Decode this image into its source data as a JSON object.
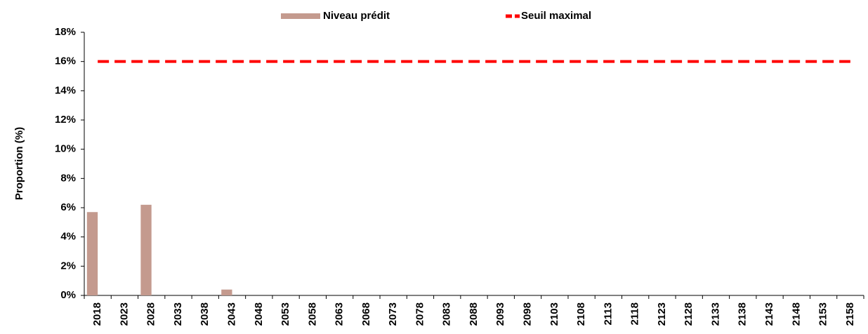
{
  "chart_data": {
    "type": "bar",
    "y_label": "Proportion (%)",
    "categories": [
      "2018",
      "2023",
      "2028",
      "2033",
      "2038",
      "2043",
      "2048",
      "2053",
      "2058",
      "2063",
      "2068",
      "2073",
      "2078",
      "2083",
      "2088",
      "2093",
      "2098",
      "2103",
      "2108",
      "2113",
      "2118",
      "2123",
      "2128",
      "2133",
      "2138",
      "2143",
      "2148",
      "2153",
      "2158"
    ],
    "series": [
      {
        "name": "Niveau prédit",
        "type": "bar",
        "color": "#c49a8e",
        "values": [
          5.7,
          0,
          6.2,
          0,
          0,
          0.4,
          0,
          0,
          0,
          0,
          0,
          0,
          0,
          0,
          0,
          0,
          0,
          0,
          0,
          0,
          0,
          0,
          0,
          0,
          0,
          0,
          0,
          0,
          0
        ]
      },
      {
        "name": "Seuil maximal",
        "type": "line",
        "color": "#ff0000",
        "dashed": true,
        "values": [
          16,
          16,
          16,
          16,
          16,
          16,
          16,
          16,
          16,
          16,
          16,
          16,
          16,
          16,
          16,
          16,
          16,
          16,
          16,
          16,
          16,
          16,
          16,
          16,
          16,
          16,
          16,
          16,
          16
        ]
      }
    ],
    "ylim": [
      0,
      18
    ],
    "yticks": [
      {
        "value": 0,
        "label": "0%"
      },
      {
        "value": 2,
        "label": "2%"
      },
      {
        "value": 4,
        "label": "4%"
      },
      {
        "value": 6,
        "label": "6%"
      },
      {
        "value": 8,
        "label": "8%"
      },
      {
        "value": 10,
        "label": "10%"
      },
      {
        "value": 12,
        "label": "12%"
      },
      {
        "value": 14,
        "label": "14%"
      },
      {
        "value": 16,
        "label": "16%"
      },
      {
        "value": 18,
        "label": "18%"
      }
    ],
    "grid": false,
    "legend": "top"
  }
}
